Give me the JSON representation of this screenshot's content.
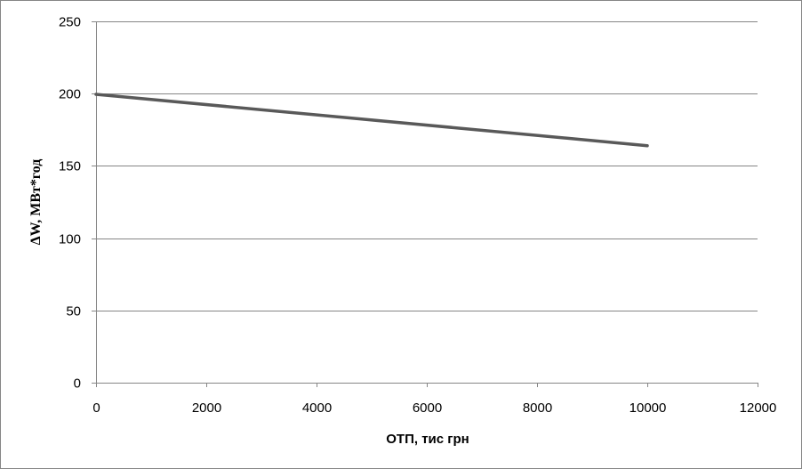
{
  "chart_data": {
    "type": "line",
    "title": "",
    "xlabel": "ОТП, тис грн",
    "ylabel": "ΔW, МВт*год",
    "xlim": [
      0,
      12000
    ],
    "ylim": [
      0,
      250
    ],
    "x_ticks": [
      0,
      2000,
      4000,
      6000,
      8000,
      10000,
      12000
    ],
    "y_ticks": [
      0,
      50,
      100,
      150,
      200,
      250
    ],
    "grid": "horizontal",
    "legend": "none",
    "series": [
      {
        "color": "#595959",
        "x": [
          0,
          10000
        ],
        "y": [
          199.5,
          164
        ]
      }
    ]
  }
}
